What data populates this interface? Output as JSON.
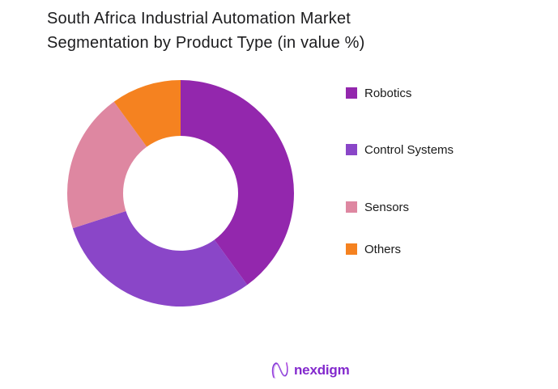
{
  "title": "South Africa Industrial Automation Market Segmentation by Product Type (in value %)",
  "chart_data": {
    "type": "pie",
    "subtype": "donut",
    "title": "South Africa Industrial Automation Market Segmentation by Product Type (in value %)",
    "unit": "%",
    "categories": [
      "Robotics",
      "Control Systems",
      "Sensors",
      "Others"
    ],
    "values": [
      40,
      30,
      20,
      10
    ],
    "colors": [
      "#9327ad",
      "#8a46c8",
      "#de87a1",
      "#f58220"
    ],
    "start_angle_deg": 0,
    "direction": "clockwise",
    "inner_radius_ratio": 0.5,
    "legend_position": "right",
    "data_labels": "none"
  },
  "footer": {
    "brand": "nexdigm"
  }
}
